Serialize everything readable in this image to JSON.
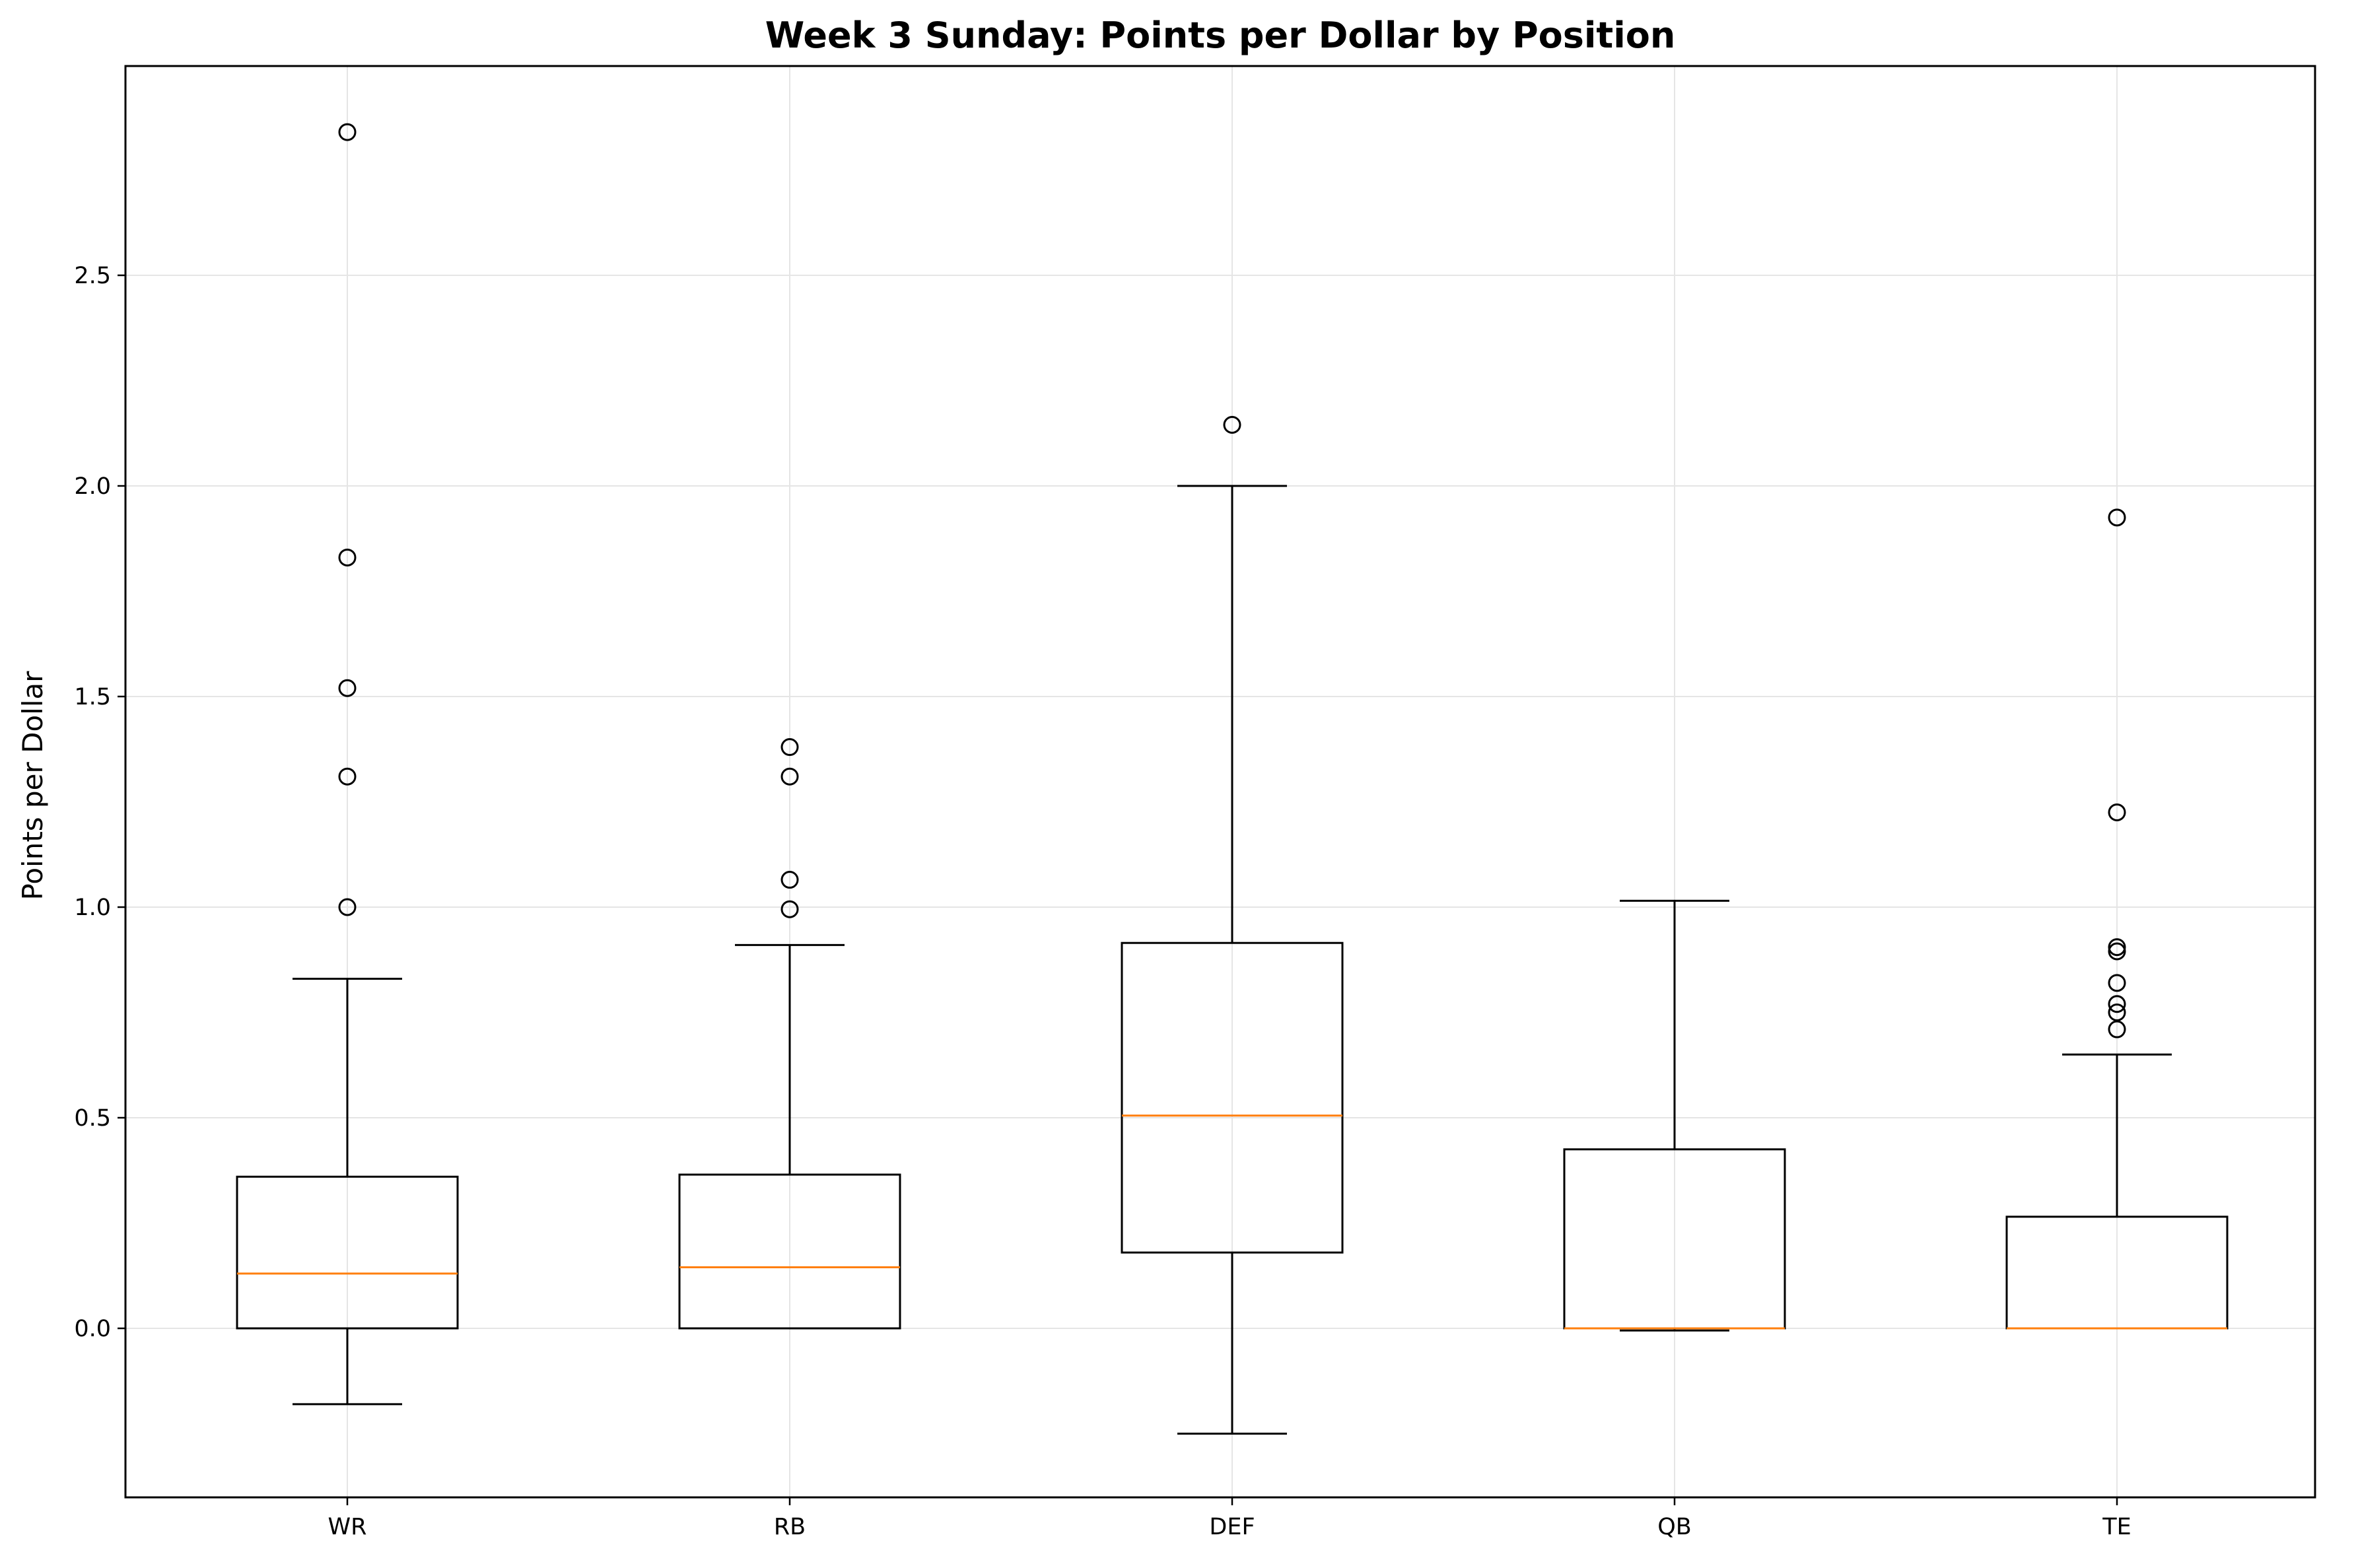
{
  "chart_data": {
    "type": "box",
    "title": "Week 3 Sunday: Points per Dollar by Position",
    "xlabel": "",
    "ylabel": "Points per Dollar",
    "ylim": [
      -0.4,
      3.0
    ],
    "yticks": [
      "0.0",
      "0.5",
      "1.0",
      "1.5",
      "2.0",
      "2.5"
    ],
    "grid": true,
    "categories": [
      "WR",
      "RB",
      "DEF",
      "QB",
      "TE"
    ],
    "boxes": [
      {
        "category": "WR",
        "whisker_low": -0.18,
        "q1": 0.0,
        "median": 0.13,
        "q3": 0.36,
        "whisker_high": 0.83,
        "outliers": [
          1.0,
          1.31,
          1.52,
          1.83,
          2.84
        ]
      },
      {
        "category": "RB",
        "whisker_low": 0.0,
        "q1": 0.0,
        "median": 0.145,
        "q3": 0.365,
        "whisker_high": 0.91,
        "outliers": [
          0.995,
          1.065,
          1.31,
          1.38
        ]
      },
      {
        "category": "DEF",
        "whisker_low": -0.25,
        "q1": 0.18,
        "median": 0.505,
        "q3": 0.915,
        "whisker_high": 2.0,
        "outliers": [
          2.145
        ]
      },
      {
        "category": "QB",
        "whisker_low": -0.005,
        "q1": 0.0,
        "median": 0.0,
        "q3": 0.425,
        "whisker_high": 1.015,
        "outliers": []
      },
      {
        "category": "TE",
        "whisker_low": 0.0,
        "q1": 0.0,
        "median": 0.0,
        "q3": 0.265,
        "whisker_high": 0.65,
        "outliers": [
          0.71,
          0.75,
          0.77,
          0.82,
          0.895,
          0.905,
          1.225,
          1.925
        ]
      }
    ],
    "colors": {
      "box": "#000000",
      "median": "#ff7f0e",
      "grid": "#e5e5e5"
    }
  }
}
